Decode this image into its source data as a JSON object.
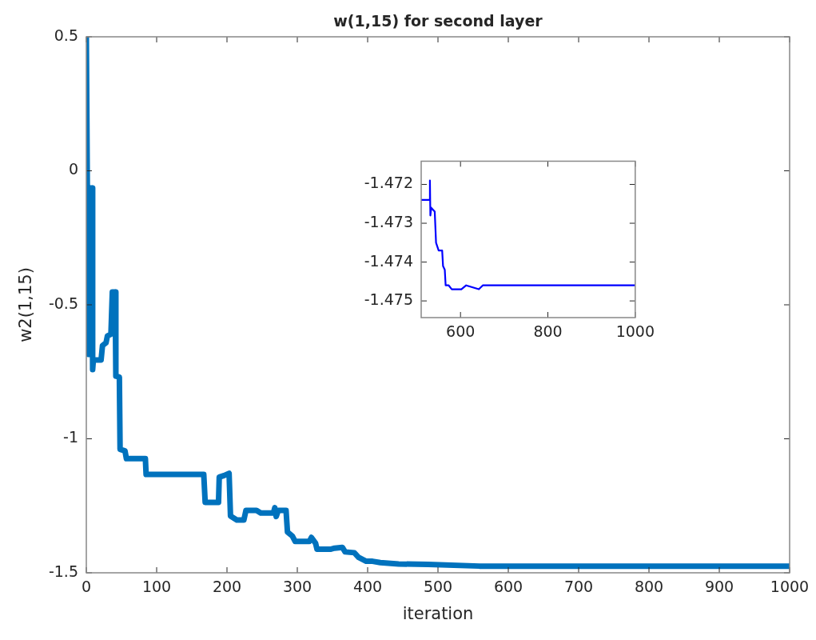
{
  "chart_data": [
    {
      "type": "line",
      "title": "w(1,15) for second layer",
      "xlabel": "iteration",
      "ylabel": "w2(1,15)",
      "xlim": [
        0,
        1000
      ],
      "xticks": [
        0,
        100,
        200,
        300,
        400,
        500,
        600,
        700,
        800,
        900,
        1000
      ],
      "ylim": [
        -1.5,
        0.5
      ],
      "yticks": [
        -1.5,
        -1,
        -0.5,
        0,
        0.5
      ],
      "grid": false,
      "legend": false,
      "marker": "none",
      "line_style": "solid",
      "series": [
        {
          "color": "#0072bd",
          "x": [
            0,
            3,
            5,
            6,
            8,
            9,
            10,
            21,
            23,
            28,
            30,
            35,
            37,
            41,
            42,
            47,
            48,
            55,
            57,
            84,
            85,
            167,
            169,
            188,
            189,
            196,
            203,
            205,
            214,
            224,
            227,
            242,
            248,
            266,
            268,
            270,
            273,
            284,
            286,
            293,
            297,
            317,
            320,
            326,
            328,
            347,
            353,
            364,
            368,
            381,
            387,
            398,
            407,
            418,
            444,
            486,
            559,
            1000
          ],
          "values": [
            0.5,
            -0.685,
            -0.685,
            -0.064,
            -0.064,
            -0.742,
            -0.706,
            -0.706,
            -0.652,
            -0.642,
            -0.616,
            -0.61,
            -0.452,
            -0.452,
            -0.766,
            -0.77,
            -1.039,
            -1.045,
            -1.074,
            -1.074,
            -1.133,
            -1.133,
            -1.237,
            -1.237,
            -1.143,
            -1.137,
            -1.129,
            -1.288,
            -1.303,
            -1.303,
            -1.267,
            -1.267,
            -1.277,
            -1.277,
            -1.257,
            -1.29,
            -1.267,
            -1.267,
            -1.348,
            -1.363,
            -1.383,
            -1.383,
            -1.368,
            -1.39,
            -1.412,
            -1.412,
            -1.408,
            -1.405,
            -1.422,
            -1.425,
            -1.442,
            -1.457,
            -1.457,
            -1.462,
            -1.467,
            -1.469,
            -1.475,
            -1.475
          ]
        }
      ]
    },
    {
      "type": "line",
      "xlim": [
        510,
        1000
      ],
      "xticks": [
        600,
        800,
        1000
      ],
      "ylim": [
        -1.47543,
        -1.4714
      ],
      "yticks": [
        -1.475,
        -1.474,
        -1.473,
        -1.472
      ],
      "grid": false,
      "legend": false,
      "marker": "none",
      "line_style": "solid",
      "series": [
        {
          "color": "#0000ff",
          "x": [
            510,
            529,
            530,
            531,
            533,
            541,
            544,
            550,
            558,
            560,
            564,
            566,
            573,
            580,
            602,
            613,
            642,
            651,
            677,
            723,
            1000
          ],
          "values": [
            -1.4724,
            -1.4724,
            -1.4719,
            -1.4728,
            -1.4726,
            -1.4727,
            -1.4735,
            -1.4737,
            -1.4737,
            -1.4741,
            -1.4742,
            -1.4746,
            -1.4746,
            -1.4747,
            -1.4747,
            -1.4746,
            -1.4747,
            -1.4746,
            -1.4746,
            -1.4746,
            -1.4746
          ]
        }
      ]
    }
  ]
}
